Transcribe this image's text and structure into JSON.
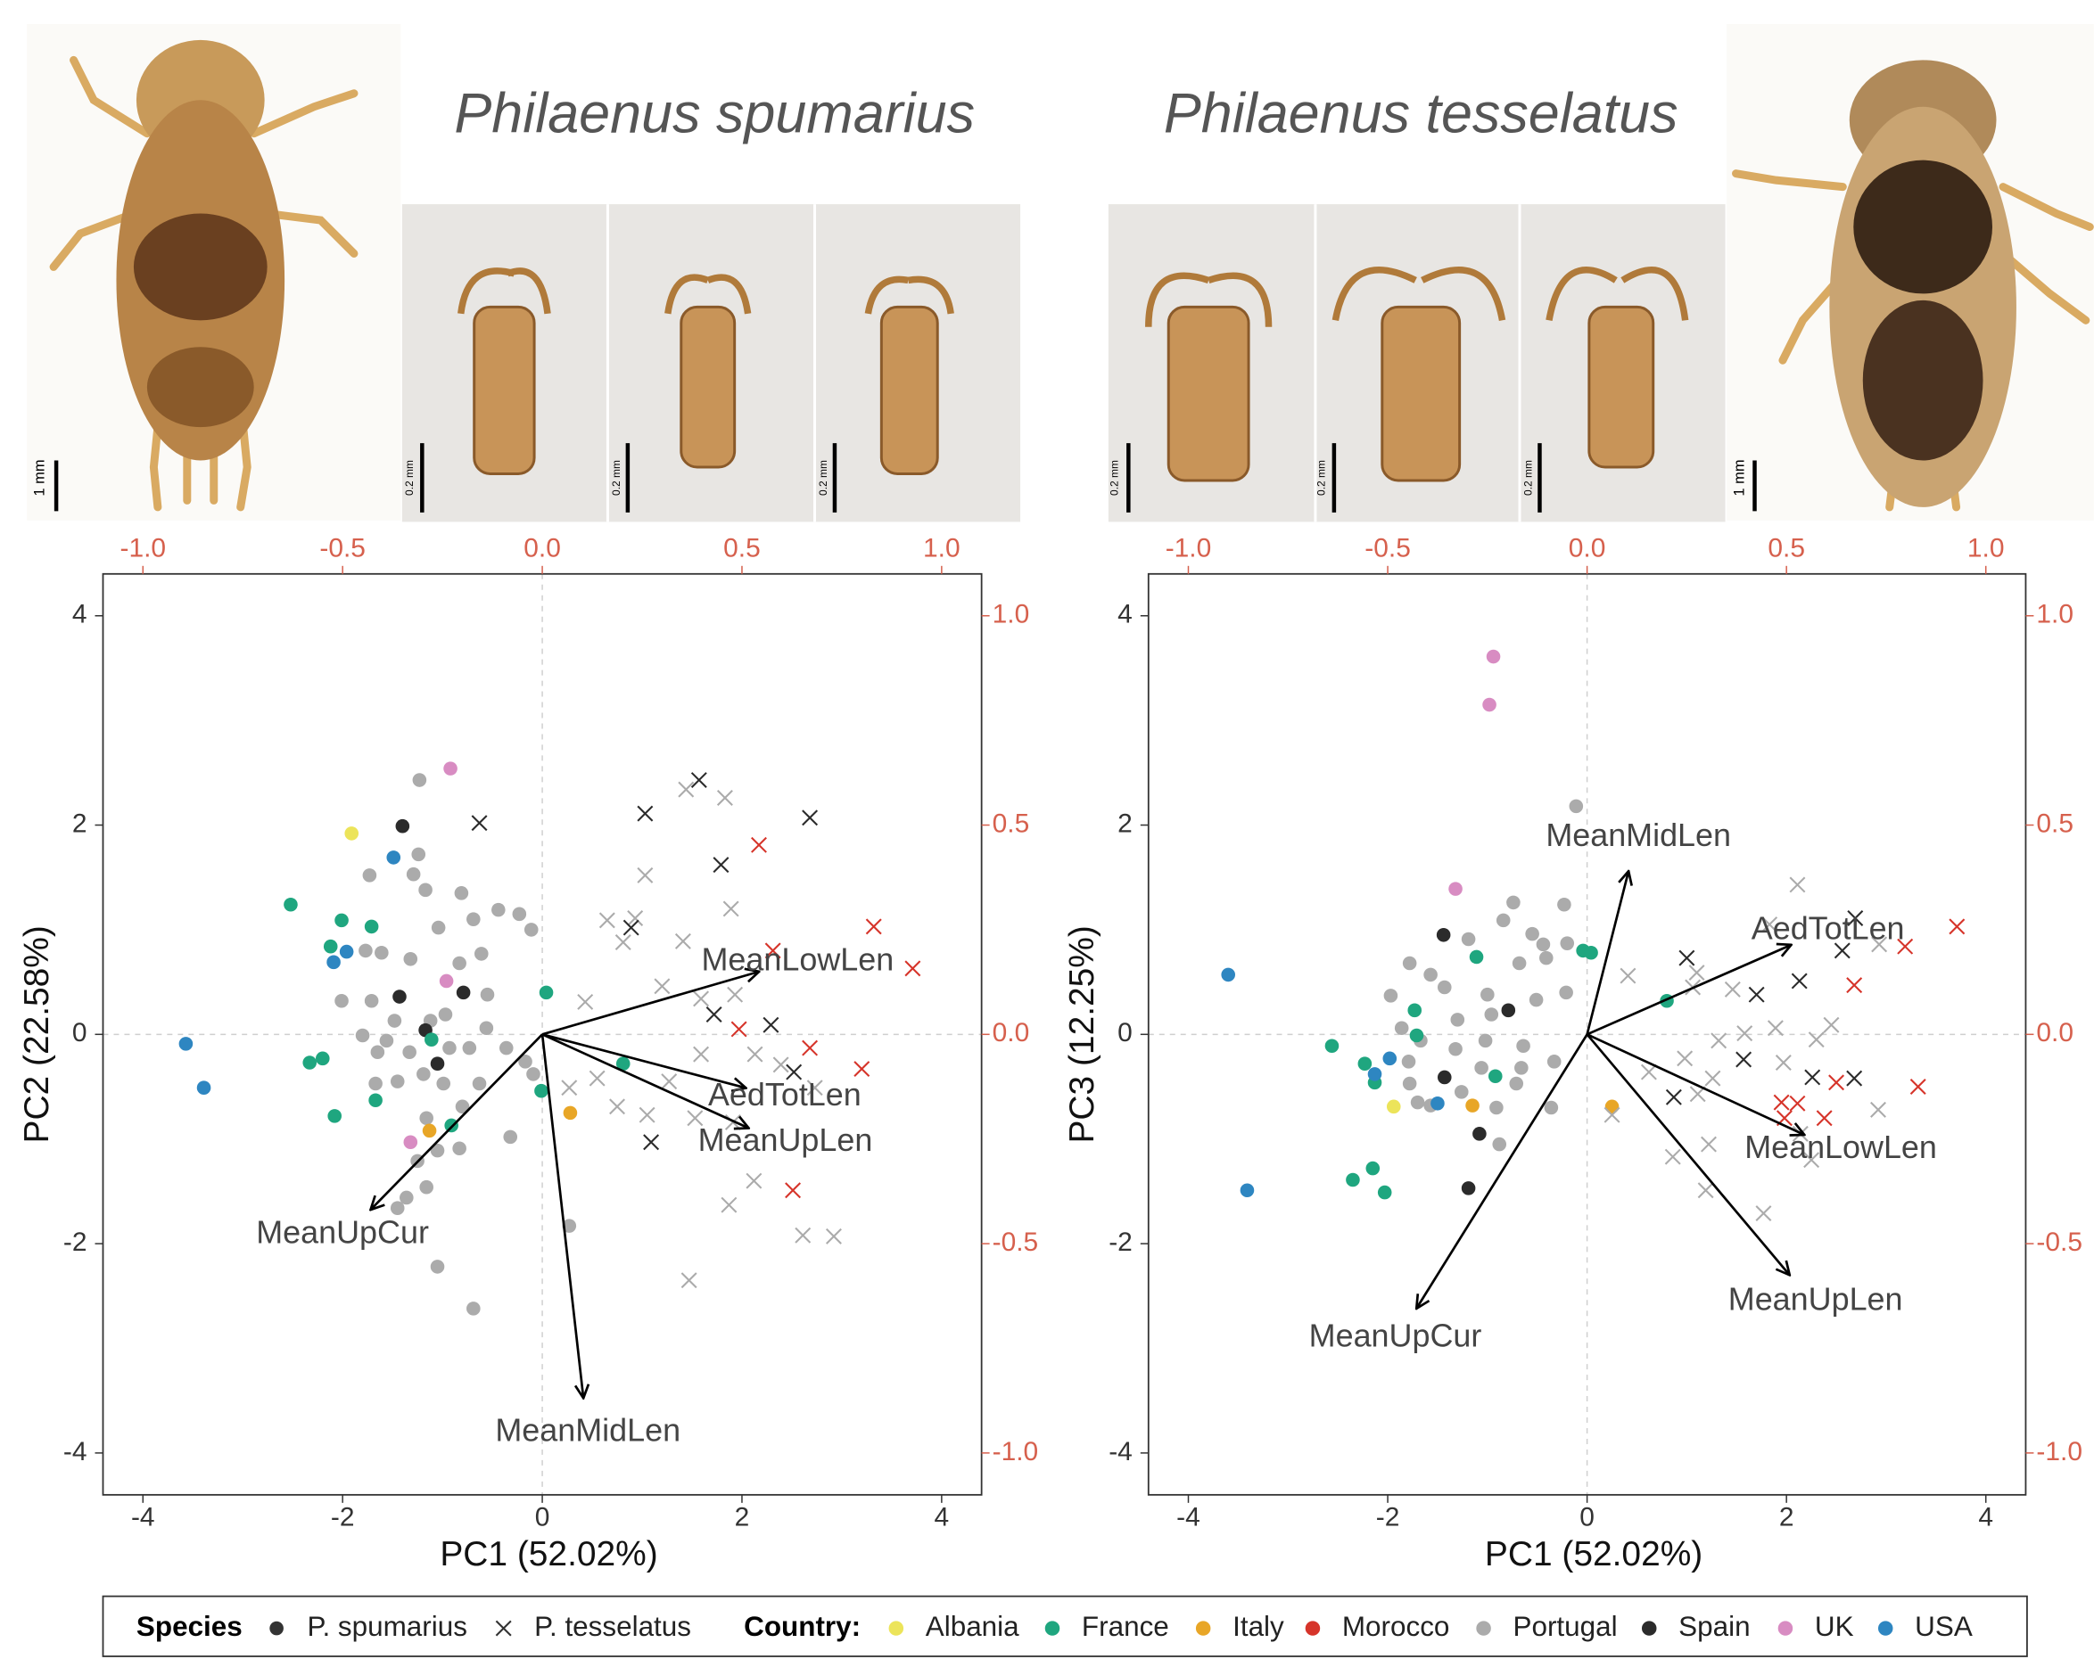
{
  "figure": {
    "titles": [
      "Philaenus spumarius",
      "Philaenus tesselatus"
    ],
    "scale_labels": [
      "1 mm",
      "0.2 mm",
      "0.2 mm",
      "0.2 mm",
      "0.2 mm",
      "0.2 mm",
      "0.2 mm",
      "1 mm"
    ]
  },
  "legend": {
    "species_title": "Species",
    "species": [
      "P. spumarius",
      "P. tesselatus"
    ],
    "species_markers": [
      "circle",
      "cross"
    ],
    "country_title": "Country:",
    "countries": [
      {
        "name": "Albania",
        "color": "#ece45a"
      },
      {
        "name": "France",
        "color": "#1fa67f"
      },
      {
        "name": "Italy",
        "color": "#e8a627"
      },
      {
        "name": "Morocco",
        "color": "#d6342a"
      },
      {
        "name": "Portugal",
        "color": "#ababab"
      },
      {
        "name": "Spain",
        "color": "#2b2b2b"
      },
      {
        "name": "UK",
        "color": "#d88cc2"
      },
      {
        "name": "USA",
        "color": "#2e86c1"
      }
    ]
  },
  "chart_data": [
    {
      "type": "biplot",
      "x_label": "PC1 (52.02%)",
      "y_label": "PC2 (22.58%)",
      "xlim": [
        -4.4,
        4.4
      ],
      "ylim": [
        -4.4,
        4.4
      ],
      "xticks": [
        -4,
        -2,
        0,
        2,
        4
      ],
      "yticks": [
        -4,
        -2,
        0,
        2,
        4
      ],
      "x2lim": [
        -1.1,
        1.1
      ],
      "y2lim": [
        -1.1,
        1.1
      ],
      "x2ticks": [
        {
          "value": -1,
          "label": "-1.0"
        },
        {
          "value": -0.5,
          "label": "-0.5"
        },
        {
          "value": 0,
          "label": "0.0"
        },
        {
          "value": 0.5,
          "label": "0.5"
        },
        {
          "value": 1,
          "label": "1.0"
        }
      ],
      "y2ticks": [
        {
          "value": -1,
          "label": "-1.0"
        },
        {
          "value": -0.5,
          "label": "-0.5"
        },
        {
          "value": 0,
          "label": "0.0"
        },
        {
          "value": 0.5,
          "label": "0.5"
        },
        {
          "value": 1,
          "label": "1.0"
        }
      ],
      "secondary_axis_color": "#d6604d",
      "zero_lines": true,
      "series": [
        {
          "species": "P. spumarius",
          "country": "Portugal",
          "x": [
            -1.23,
            -1.24,
            -1.29,
            -1.73,
            -1.17,
            -0.81,
            -1.04,
            -0.69,
            -0.44,
            -0.23,
            -0.11,
            -0.61,
            -0.83,
            -1.61,
            -1.77,
            -1.32,
            -2.01,
            -1.71,
            -1.48,
            -1.8,
            -1.56,
            -1.33,
            -0.97,
            -0.56,
            -0.93,
            -0.73,
            -0.36,
            -0.17,
            -0.09,
            -0.63,
            -0.8,
            -1.19,
            -0.99,
            -1.45,
            -1.67,
            -1.16,
            -1.05,
            -1.25,
            -1.16,
            -1.36,
            -1.45,
            -1.05,
            -0.83,
            -0.32,
            0.27,
            -0.69,
            -1.65,
            -0.55,
            -1.12
          ],
          "y": [
            2.43,
            1.72,
            1.53,
            1.52,
            1.38,
            1.35,
            1.02,
            1.1,
            1.19,
            1.15,
            1.0,
            0.77,
            0.68,
            0.78,
            0.8,
            0.72,
            0.32,
            0.32,
            0.13,
            -0.01,
            -0.06,
            -0.17,
            0.19,
            0.06,
            -0.13,
            -0.13,
            -0.13,
            -0.26,
            -0.38,
            -0.47,
            -0.69,
            -0.38,
            -0.47,
            -0.45,
            -0.47,
            -0.8,
            -1.11,
            -1.21,
            -1.46,
            -1.56,
            -1.66,
            -2.22,
            -1.09,
            -0.98,
            -1.83,
            -2.62,
            -0.17,
            0.38,
            0.13
          ]
        },
        {
          "species": "P. spumarius",
          "country": "Spain",
          "x": [
            -1.4,
            -1.43,
            -1.17,
            -1.05,
            -0.79
          ],
          "y": [
            1.99,
            0.36,
            0.04,
            -0.28,
            0.4
          ]
        },
        {
          "species": "P. spumarius",
          "country": "France",
          "x": [
            -2.52,
            -2.01,
            -2.12,
            -1.71,
            -2.2,
            -2.33,
            -2.08,
            -1.67,
            -1.11,
            -0.91,
            0.04,
            -0.01,
            0.81
          ],
          "y": [
            1.24,
            1.09,
            0.84,
            1.03,
            -0.23,
            -0.27,
            -0.78,
            -0.63,
            -0.05,
            -0.87,
            0.4,
            -0.54,
            -0.28
          ]
        },
        {
          "species": "P. spumarius",
          "country": "USA",
          "x": [
            -3.57,
            -3.39,
            -1.49,
            -1.96,
            -2.09
          ],
          "y": [
            -0.09,
            -0.51,
            1.69,
            0.79,
            0.69
          ]
        },
        {
          "species": "P. spumarius",
          "country": "Albania",
          "x": [
            -1.91
          ],
          "y": [
            1.92
          ]
        },
        {
          "species": "P. spumarius",
          "country": "Italy",
          "x": [
            -1.13,
            0.28
          ],
          "y": [
            -0.92,
            -0.75
          ]
        },
        {
          "species": "P. spumarius",
          "country": "UK",
          "x": [
            -0.92,
            -1.32,
            -0.96
          ],
          "y": [
            2.54,
            -1.03,
            0.51
          ]
        },
        {
          "species": "P. tesselatus",
          "country": "Portugal",
          "x": [
            1.44,
            1.83,
            1.03,
            1.89,
            0.65,
            0.93,
            0.81,
            0.43,
            1.2,
            1.41,
            1.59,
            1.93,
            2.13,
            2.39,
            1.59,
            1.27,
            1.05,
            1.53,
            1.91,
            0.27,
            0.75,
            2.12,
            1.87,
            2.61,
            2.92,
            1.47,
            2.73,
            0.55
          ],
          "y": [
            2.34,
            2.26,
            1.52,
            1.2,
            1.09,
            1.11,
            0.88,
            0.31,
            0.46,
            0.89,
            0.34,
            0.38,
            -0.19,
            -0.29,
            -0.19,
            -0.45,
            -0.77,
            -0.8,
            -0.84,
            -0.51,
            -0.69,
            -1.4,
            -1.63,
            -1.92,
            -1.93,
            -2.35,
            -0.51,
            -0.42
          ]
        },
        {
          "species": "P. tesselatus",
          "country": "Spain",
          "x": [
            1.57,
            -0.63,
            1.03,
            2.68,
            1.79,
            0.89,
            1.72,
            2.29,
            2.52,
            1.09
          ],
          "y": [
            2.43,
            2.02,
            2.11,
            2.07,
            1.62,
            1.02,
            0.19,
            0.09,
            -0.36,
            -1.03
          ]
        },
        {
          "species": "P. tesselatus",
          "country": "Morocco",
          "x": [
            2.17,
            2.31,
            3.32,
            3.71,
            3.2,
            2.68,
            1.97,
            2.51
          ],
          "y": [
            1.81,
            0.8,
            1.03,
            0.63,
            -0.33,
            -0.13,
            0.05,
            -1.49
          ]
        }
      ],
      "loadings": {
        "labels": [
          "MeanLowLen",
          "AedTotLen",
          "MeanUpLen",
          "MeanUpCur",
          "MeanMidLen"
        ],
        "x": [
          0.543,
          0.51,
          0.517,
          -0.43,
          0.103
        ],
        "y": [
          0.15,
          -0.128,
          -0.224,
          -0.419,
          -0.869
        ]
      }
    },
    {
      "type": "biplot",
      "x_label": "PC1 (52.02%)",
      "y_label": "PC3 (12.25%)",
      "xlim": [
        -4.4,
        4.4
      ],
      "ylim": [
        -4.4,
        4.4
      ],
      "xticks": [
        -4,
        -2,
        0,
        2,
        4
      ],
      "yticks": [
        -4,
        -2,
        0,
        2,
        4
      ],
      "x2lim": [
        -1.1,
        1.1
      ],
      "y2lim": [
        -1.1,
        1.1
      ],
      "x2ticks": [
        {
          "value": -1,
          "label": "-1.0"
        },
        {
          "value": -0.5,
          "label": "-0.5"
        },
        {
          "value": 0,
          "label": "0.0"
        },
        {
          "value": 0.5,
          "label": "0.5"
        },
        {
          "value": 1,
          "label": "1.0"
        }
      ],
      "y2ticks": [
        {
          "value": -1,
          "label": "-1.0"
        },
        {
          "value": -0.5,
          "label": "-0.5"
        },
        {
          "value": 0,
          "label": "0.0"
        },
        {
          "value": 0.5,
          "label": "0.5"
        },
        {
          "value": 1,
          "label": "1.0"
        }
      ],
      "secondary_axis_color": "#d6604d",
      "zero_lines": true,
      "series": [
        {
          "species": "P. spumarius",
          "country": "Portugal",
          "x": [
            -0.11,
            -0.74,
            -0.23,
            -0.55,
            -0.44,
            -0.2,
            -0.84,
            -1.19,
            -1.57,
            -1.78,
            -1.97,
            -1.43,
            -1.0,
            -0.68,
            -0.51,
            -0.21,
            -1.3,
            -1.67,
            -1.78,
            -1.32,
            -1.02,
            -0.64,
            -0.33,
            -0.71,
            -1.26,
            -1.57,
            -1.7,
            -0.91,
            -0.36,
            -0.88,
            -0.41,
            -0.96,
            -1.86,
            -1.79,
            -1.06,
            -0.66
          ],
          "y": [
            2.18,
            1.26,
            1.24,
            0.96,
            0.86,
            0.87,
            1.09,
            0.91,
            0.57,
            0.68,
            0.37,
            0.45,
            0.38,
            0.68,
            0.33,
            0.4,
            0.14,
            -0.06,
            -0.47,
            -0.14,
            -0.06,
            -0.11,
            -0.26,
            -0.47,
            -0.55,
            -0.68,
            -0.65,
            -0.7,
            -0.7,
            -1.05,
            0.73,
            0.19,
            0.06,
            -0.26,
            -0.32,
            -0.32
          ]
        },
        {
          "species": "P. spumarius",
          "country": "Spain",
          "x": [
            -1.44,
            -0.79,
            -1.43,
            -1.08,
            -1.19
          ],
          "y": [
            0.95,
            0.23,
            -0.41,
            -0.95,
            -1.47
          ]
        },
        {
          "species": "P. spumarius",
          "country": "France",
          "x": [
            -2.56,
            -2.23,
            -2.13,
            -2.35,
            -2.15,
            -2.03,
            -1.73,
            -1.71,
            -1.11,
            -0.92,
            -0.04,
            0.04,
            0.8
          ],
          "y": [
            -0.11,
            -0.28,
            -0.46,
            -1.39,
            -1.28,
            -1.51,
            0.23,
            -0.01,
            0.74,
            -0.4,
            0.8,
            0.78,
            0.32
          ]
        },
        {
          "species": "P. spumarius",
          "country": "USA",
          "x": [
            -3.6,
            -3.41,
            -1.98,
            -2.13,
            -1.5
          ],
          "y": [
            0.57,
            -1.49,
            -0.23,
            -0.38,
            -0.66
          ]
        },
        {
          "species": "P. spumarius",
          "country": "Albania",
          "x": [
            -1.94
          ],
          "y": [
            -0.69
          ]
        },
        {
          "species": "P. spumarius",
          "country": "Italy",
          "x": [
            -1.15,
            0.25
          ],
          "y": [
            -0.68,
            -0.69
          ]
        },
        {
          "species": "P. spumarius",
          "country": "UK",
          "x": [
            -0.94,
            -0.98,
            -1.32
          ],
          "y": [
            3.61,
            3.15,
            1.39
          ]
        },
        {
          "species": "P. tesselatus",
          "country": "Portugal",
          "x": [
            2.11,
            1.83,
            1.46,
            1.1,
            0.41,
            1.06,
            1.32,
            1.58,
            1.89,
            1.97,
            1.26,
            0.98,
            0.62,
            1.11,
            2.3,
            2.92,
            2.14,
            2.25,
            1.22,
            0.86,
            1.19,
            1.77,
            0.25,
            2.93,
            2.45
          ],
          "y": [
            1.43,
            1.05,
            0.43,
            0.59,
            0.56,
            0.45,
            -0.06,
            0.01,
            0.06,
            -0.27,
            -0.42,
            -0.23,
            -0.36,
            -0.57,
            -0.05,
            -0.72,
            -0.95,
            -1.2,
            -1.05,
            -1.17,
            -1.49,
            -1.71,
            -0.77,
            0.86,
            0.09
          ]
        },
        {
          "species": "P. tesselatus",
          "country": "Spain",
          "x": [
            2.69,
            1.0,
            2.13,
            1.7,
            2.26,
            2.68,
            1.57,
            0.87,
            2.56
          ],
          "y": [
            1.11,
            0.73,
            0.51,
            0.38,
            -0.41,
            -0.42,
            -0.24,
            -0.6,
            0.8
          ]
        },
        {
          "species": "P. tesselatus",
          "country": "Morocco",
          "x": [
            3.71,
            3.19,
            3.32,
            2.68,
            2.5,
            2.38,
            1.98,
            1.95,
            2.11
          ],
          "y": [
            1.03,
            0.84,
            -0.5,
            0.47,
            -0.46,
            -0.8,
            -0.8,
            -0.65,
            -0.66
          ]
        }
      ],
      "loadings": {
        "labels": [
          "MeanMidLen",
          "AedTotLen",
          "MeanLowLen",
          "MeanUpLen",
          "MeanUpCur"
        ],
        "x": [
          0.104,
          0.512,
          0.545,
          0.508,
          -0.428
        ],
        "y": [
          0.39,
          0.214,
          -0.24,
          -0.575,
          -0.655
        ]
      }
    }
  ]
}
